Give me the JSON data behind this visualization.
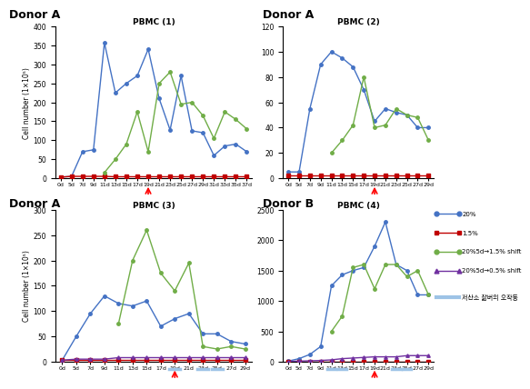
{
  "pbmc1": {
    "title": "PBMC (1)",
    "donor": "Donor A",
    "x_labels": [
      "0d",
      "5d",
      "7d",
      "9d",
      "11d",
      "13d",
      "15d",
      "17d",
      "19d",
      "21d",
      "23d",
      "25d",
      "27d",
      "29d",
      "31d",
      "33d",
      "35d",
      "37d"
    ],
    "blue": [
      3,
      5,
      70,
      75,
      357,
      225,
      250,
      270,
      340,
      210,
      127,
      270,
      125,
      120,
      60,
      85,
      90,
      70
    ],
    "red": [
      3,
      5,
      5,
      5,
      5,
      4,
      4,
      4,
      4,
      4,
      4,
      4,
      4,
      4,
      4,
      4,
      4,
      4
    ],
    "green": [
      null,
      null,
      null,
      null,
      15,
      50,
      90,
      175,
      70,
      250,
      280,
      195,
      200,
      165,
      105,
      175,
      155,
      130
    ],
    "purple": null,
    "ylim": [
      0,
      400
    ],
    "yticks": [
      0,
      50,
      100,
      150,
      200,
      250,
      300,
      350,
      400
    ],
    "arrow_xi": 8,
    "hypoxia_bars": []
  },
  "pbmc2": {
    "title": "PBMC (2)",
    "donor": "Donor A",
    "x_labels": [
      "0d",
      "5d",
      "7d",
      "9d",
      "11d",
      "13d",
      "15d",
      "17d",
      "19d",
      "21d",
      "23d",
      "25d",
      "27d",
      "29d"
    ],
    "blue": [
      5,
      5,
      55,
      90,
      100,
      95,
      88,
      70,
      45,
      55,
      52,
      50,
      40,
      40
    ],
    "red": [
      2,
      2,
      2,
      2,
      2,
      2,
      2,
      2,
      2,
      2,
      2,
      2,
      2,
      2
    ],
    "green": [
      null,
      null,
      null,
      null,
      20,
      30,
      42,
      80,
      40,
      42,
      55,
      50,
      48,
      30
    ],
    "purple": null,
    "ylim": [
      0,
      120
    ],
    "yticks": [
      0,
      20,
      40,
      60,
      80,
      100,
      120
    ],
    "arrow_xi": 8,
    "hypoxia_bars": []
  },
  "pbmc3": {
    "title": "PBMC (3)",
    "donor": "Donor A",
    "x_labels": [
      "0d",
      "5d",
      "7d",
      "9d",
      "11d",
      "13d",
      "15d",
      "17d",
      "19d",
      "21d",
      "23d",
      "25d",
      "27d",
      "29d"
    ],
    "blue": [
      3,
      50,
      95,
      130,
      115,
      110,
      120,
      70,
      85,
      95,
      55,
      55,
      40,
      35
    ],
    "red": [
      3,
      3,
      3,
      3,
      3,
      3,
      3,
      3,
      3,
      3,
      3,
      3,
      3,
      3
    ],
    "green": [
      null,
      null,
      null,
      null,
      75,
      200,
      260,
      175,
      140,
      195,
      30,
      25,
      30,
      25
    ],
    "purple": [
      3,
      5,
      5,
      5,
      8,
      8,
      8,
      8,
      8,
      8,
      8,
      8,
      8,
      8
    ],
    "ylim": [
      0,
      300
    ],
    "yticks": [
      0,
      50,
      100,
      150,
      200,
      250,
      300
    ],
    "arrow_xi": 8,
    "hypoxia_bars": [
      8,
      10,
      11
    ]
  },
  "pbmc4": {
    "title": "PBMC (4)",
    "donor": "Donor B",
    "x_labels": [
      "0d",
      "5d",
      "7d",
      "9d",
      "11d",
      "13d",
      "15d",
      "17d",
      "19d",
      "21d",
      "23d",
      "25d",
      "27d",
      "29d"
    ],
    "blue": [
      10,
      50,
      120,
      250,
      1250,
      1430,
      1500,
      1550,
      1900,
      2300,
      1600,
      1500,
      1100,
      1100
    ],
    "red": [
      5,
      5,
      5,
      5,
      5,
      5,
      5,
      5,
      5,
      5,
      5,
      5,
      5,
      5
    ],
    "green": [
      null,
      null,
      null,
      null,
      500,
      750,
      1550,
      1600,
      1200,
      1600,
      1600,
      1400,
      1500,
      1100
    ],
    "purple": [
      5,
      10,
      15,
      20,
      30,
      50,
      60,
      70,
      80,
      80,
      80,
      100,
      100,
      100
    ],
    "ylim": [
      0,
      2500
    ],
    "yticks": [
      0,
      500,
      1000,
      1500,
      2000,
      2500
    ],
    "arrow_xi": 8,
    "hypoxia_bars": [
      4,
      5,
      10,
      11
    ]
  },
  "colors": {
    "blue": "#4472C4",
    "red": "#C00000",
    "green": "#70AD47",
    "purple": "#7030A0",
    "sky": "#9DC3E6"
  },
  "legend_labels": [
    "20%",
    "1.5%",
    "20%5d→1.5% shift",
    "20%5d→0.5% shift"
  ],
  "hypoxia_label": "저산소 찲버의 오작동"
}
